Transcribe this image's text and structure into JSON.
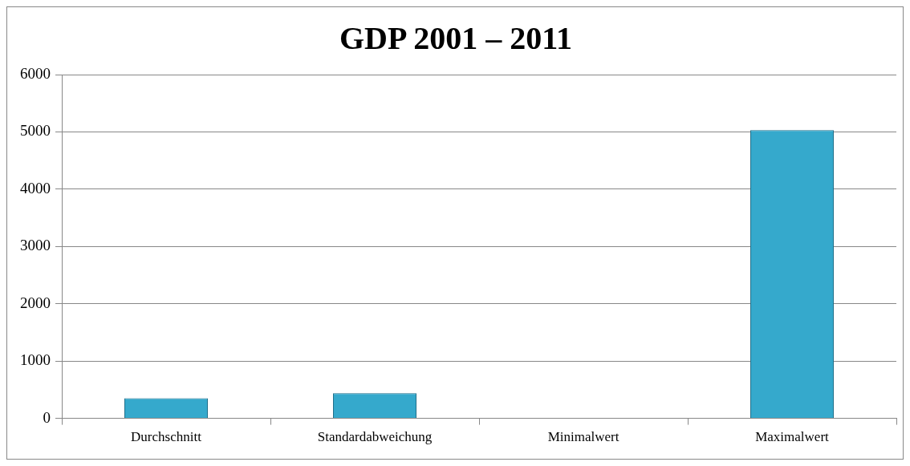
{
  "chart_data": {
    "type": "bar",
    "title": "GDP 2001 – 2011",
    "categories": [
      "Durchschnitt",
      "Standardabweichung",
      "Minimalwert",
      "Maximalwert"
    ],
    "values": [
      350,
      440,
      10,
      5030
    ],
    "color": "#35a9cc",
    "ylim": [
      0,
      6000
    ],
    "yticks": [
      0,
      1000,
      2000,
      3000,
      4000,
      5000,
      6000
    ],
    "grid": "y",
    "legend": false
  }
}
